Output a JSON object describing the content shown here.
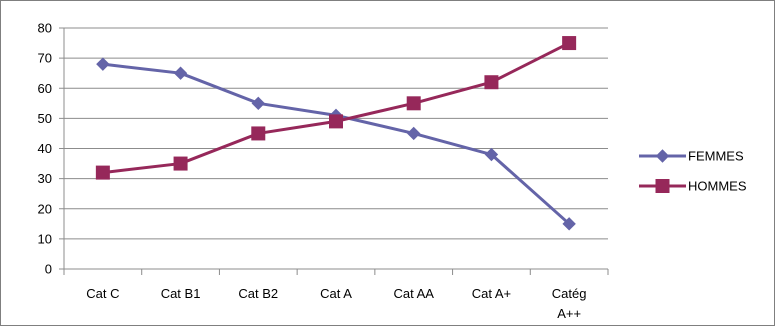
{
  "chart_data": {
    "type": "line",
    "categories": [
      "Cat C",
      "Cat B1",
      "Cat B2",
      "Cat A",
      "Cat AA",
      "Cat A+",
      "Catég A++"
    ],
    "series": [
      {
        "name": "FEMMES",
        "values": [
          68,
          65,
          55,
          51,
          45,
          38,
          15
        ],
        "color": "#6464A8",
        "marker": "diamond"
      },
      {
        "name": "HOMMES",
        "values": [
          32,
          35,
          45,
          49,
          55,
          62,
          75
        ],
        "color": "#96285A",
        "marker": "square"
      }
    ],
    "y_ticks": [
      "0",
      "10",
      "20",
      "30",
      "40",
      "50",
      "60",
      "70",
      "80"
    ],
    "ylim": [
      0,
      80
    ],
    "grid": true,
    "legend_position": "right"
  }
}
